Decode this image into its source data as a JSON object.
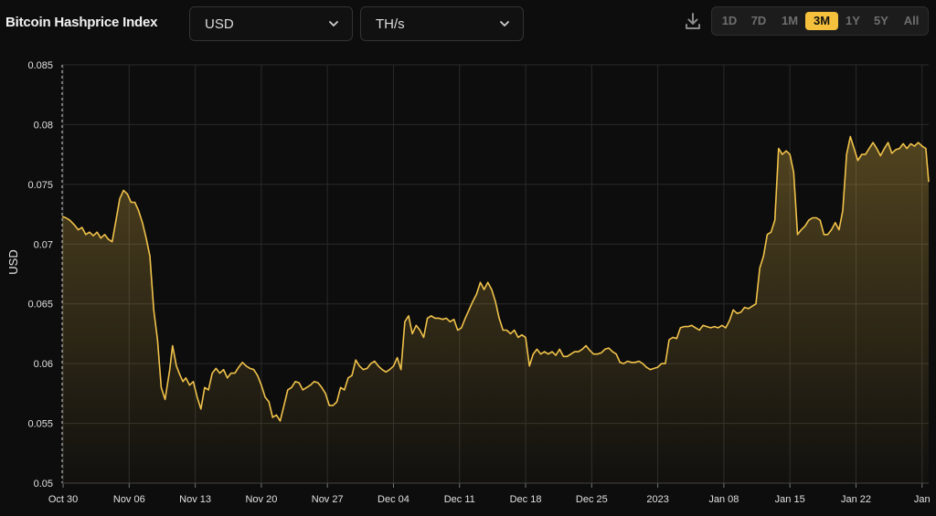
{
  "header": {
    "title": "Bitcoin Hashprice Index",
    "currency_select": {
      "value": "USD"
    },
    "unit_select": {
      "value": "TH/s"
    },
    "download_icon": "download-icon",
    "ranges": [
      {
        "label": "1D",
        "active": false
      },
      {
        "label": "7D",
        "active": false
      },
      {
        "label": "1M",
        "active": false
      },
      {
        "label": "3M",
        "active": true
      },
      {
        "label": "1Y",
        "active": false
      },
      {
        "label": "5Y",
        "active": false
      },
      {
        "label": "All",
        "active": false
      }
    ]
  },
  "colors": {
    "accent": "#f5c13d",
    "line": "#f0c24a",
    "background": "#0d0d0d",
    "grid": "#2a2a2a"
  },
  "chart_data": {
    "type": "area",
    "ylabel": "USD",
    "xlabel": "",
    "title": "",
    "ylim": [
      0.05,
      0.085
    ],
    "y_ticks": [
      "0.05",
      "0.055",
      "0.06",
      "0.065",
      "0.07",
      "0.075",
      "0.08",
      "0.085"
    ],
    "x_ticks": [
      {
        "label": "Oct 30",
        "day": 0
      },
      {
        "label": "Nov 06",
        "day": 7
      },
      {
        "label": "Nov 13",
        "day": 14
      },
      {
        "label": "Nov 20",
        "day": 21
      },
      {
        "label": "Nov 27",
        "day": 28
      },
      {
        "label": "Dec 04",
        "day": 35
      },
      {
        "label": "Dec 11",
        "day": 42
      },
      {
        "label": "Dec 18",
        "day": 49
      },
      {
        "label": "Dec 25",
        "day": 56
      },
      {
        "label": "2023",
        "day": 63
      },
      {
        "label": "Jan 08",
        "day": 70
      },
      {
        "label": "Jan 15",
        "day": 77
      },
      {
        "label": "Jan 22",
        "day": 84
      },
      {
        "label": "Jan",
        "day": 91
      }
    ],
    "grid": true,
    "series": [
      {
        "x": [
          -0.1,
          0.3,
          0.7,
          1.2,
          1.6,
          2.0,
          2.4,
          2.8,
          3.2,
          3.6,
          4.0,
          4.4,
          4.8,
          5.2,
          5.6,
          6.0,
          6.4,
          6.8,
          7.2,
          7.6,
          8.0,
          8.4,
          8.8,
          9.2,
          9.6,
          10.0,
          10.4,
          10.8,
          11.3,
          11.6,
          12.0,
          12.4,
          12.7,
          13.0,
          13.4,
          13.8,
          14.2,
          14.6,
          15.0,
          15.4,
          15.8,
          16.2,
          16.6,
          17.0,
          17.4,
          17.8,
          18.2,
          18.6,
          19.0,
          19.4,
          19.8,
          20.2,
          20.6,
          21.0,
          21.4,
          21.8,
          22.2,
          22.6,
          23.0,
          23.4,
          23.8,
          24.2,
          24.6,
          25.0,
          25.4,
          25.8,
          26.2,
          26.6,
          27.0,
          27.4,
          27.8,
          28.2,
          28.6,
          29.0,
          29.4,
          29.8,
          30.2,
          30.6,
          31.0,
          31.4,
          31.8,
          32.2,
          32.6,
          33.0,
          33.4,
          33.8,
          34.2,
          34.6,
          35.0,
          35.4,
          35.8,
          36.2,
          36.6,
          37.0,
          37.4,
          37.8,
          38.2,
          38.6,
          39.0,
          39.4,
          39.8,
          40.2,
          40.6,
          41.0,
          41.4,
          41.8,
          42.2,
          42.6,
          43.0,
          43.4,
          43.8,
          44.2,
          44.6,
          45.0,
          45.4,
          45.8,
          46.2,
          46.6,
          47.0,
          47.4,
          47.8,
          48.2,
          48.6,
          49.0,
          49.4,
          49.8,
          50.2,
          50.6,
          51.0,
          51.4,
          51.8,
          52.2,
          52.6,
          53.0,
          53.4,
          53.8,
          54.2,
          54.6,
          55.0,
          55.4,
          55.8,
          56.2,
          56.6,
          57.0,
          57.4,
          57.8,
          58.2,
          58.6,
          59.0,
          59.4,
          59.8,
          60.2,
          60.6,
          61.0,
          61.4,
          61.8,
          62.2,
          62.6,
          63.0,
          63.4,
          63.8,
          64.2,
          64.6,
          65.0,
          65.4,
          65.8,
          66.2,
          66.6,
          67.0,
          67.4,
          67.8,
          68.2,
          68.6,
          69.0,
          69.4,
          69.8,
          70.2,
          70.6,
          71.0,
          71.4,
          71.8,
          72.2,
          72.6,
          73.0,
          73.4,
          73.8,
          74.2,
          74.6,
          75.0,
          75.4,
          75.8,
          76.2,
          76.6,
          77.0,
          77.4,
          77.8,
          78.2,
          78.6,
          79.0,
          79.4,
          79.8,
          80.2,
          80.6,
          81.0,
          81.4,
          81.8,
          82.2,
          82.6,
          83.0,
          83.4,
          83.8,
          84.2,
          84.6,
          85.0,
          85.4,
          85.8,
          86.2,
          86.6,
          87.0,
          87.4,
          87.8,
          88.2,
          88.6,
          89.0,
          89.4,
          89.8,
          90.2,
          90.6,
          91.0,
          91.4,
          91.7
        ],
        "values": [
          0.0723,
          0.0722,
          0.072,
          0.0716,
          0.0712,
          0.0714,
          0.0708,
          0.071,
          0.0707,
          0.071,
          0.0705,
          0.0708,
          0.0704,
          0.0702,
          0.072,
          0.0738,
          0.0745,
          0.0742,
          0.0735,
          0.0735,
          0.0728,
          0.0718,
          0.0705,
          0.069,
          0.0645,
          0.062,
          0.058,
          0.057,
          0.0595,
          0.0615,
          0.0598,
          0.059,
          0.0585,
          0.0588,
          0.0582,
          0.0585,
          0.0572,
          0.0562,
          0.058,
          0.0578,
          0.0592,
          0.0596,
          0.0592,
          0.0595,
          0.0588,
          0.0592,
          0.0592,
          0.0597,
          0.0601,
          0.0598,
          0.0596,
          0.0595,
          0.059,
          0.0582,
          0.0572,
          0.0568,
          0.0555,
          0.0557,
          0.0552,
          0.0565,
          0.0578,
          0.058,
          0.0585,
          0.0584,
          0.0578,
          0.058,
          0.0582,
          0.0585,
          0.0584,
          0.058,
          0.0575,
          0.0565,
          0.0565,
          0.0568,
          0.058,
          0.0578,
          0.0588,
          0.059,
          0.0603,
          0.0598,
          0.0595,
          0.0596,
          0.06,
          0.0602,
          0.0598,
          0.0595,
          0.0593,
          0.0595,
          0.0598,
          0.0605,
          0.0595,
          0.0635,
          0.064,
          0.0625,
          0.0632,
          0.0628,
          0.0622,
          0.0638,
          0.064,
          0.0638,
          0.0638,
          0.0637,
          0.0638,
          0.0635,
          0.0637,
          0.0628,
          0.063,
          0.0638,
          0.0645,
          0.0652,
          0.0658,
          0.0668,
          0.0662,
          0.0668,
          0.0662,
          0.0652,
          0.0638,
          0.0628,
          0.0628,
          0.0625,
          0.0628,
          0.0622,
          0.0624,
          0.0622,
          0.0598,
          0.0608,
          0.0612,
          0.0608,
          0.061,
          0.0608,
          0.061,
          0.0607,
          0.0612,
          0.0606,
          0.0606,
          0.0608,
          0.061,
          0.061,
          0.0612,
          0.0615,
          0.0611,
          0.0608,
          0.0608,
          0.0609,
          0.0612,
          0.0613,
          0.061,
          0.0608,
          0.0601,
          0.06,
          0.0602,
          0.0601,
          0.0601,
          0.0602,
          0.06,
          0.0597,
          0.0595,
          0.0596,
          0.0597,
          0.06,
          0.06,
          0.062,
          0.0622,
          0.0621,
          0.063,
          0.0631,
          0.0631,
          0.0632,
          0.063,
          0.0628,
          0.0632,
          0.0631,
          0.063,
          0.0631,
          0.063,
          0.0632,
          0.063,
          0.0636,
          0.0645,
          0.0642,
          0.0643,
          0.0647,
          0.0646,
          0.0648,
          0.065,
          0.068,
          0.069,
          0.0708,
          0.071,
          0.072,
          0.078,
          0.0775,
          0.0778,
          0.0775,
          0.076,
          0.0708,
          0.0712,
          0.0715,
          0.072,
          0.0722,
          0.0722,
          0.072,
          0.0708,
          0.0708,
          0.0712,
          0.0718,
          0.0712,
          0.0728,
          0.0775,
          0.079,
          0.078,
          0.077,
          0.0775,
          0.0775,
          0.078,
          0.0785,
          0.078,
          0.0774,
          0.078,
          0.0785,
          0.0776,
          0.0779,
          0.078,
          0.0784,
          0.078,
          0.0784,
          0.0782,
          0.0785,
          0.0782,
          0.078,
          0.0752
        ]
      }
    ]
  }
}
